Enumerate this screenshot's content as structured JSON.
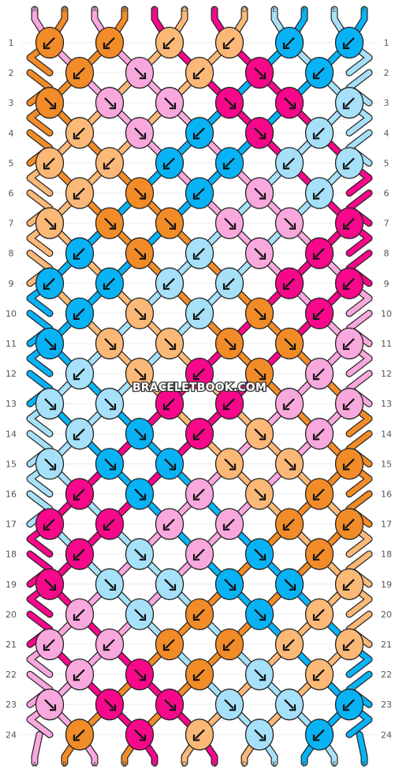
{
  "watermark": "BRACELETBOOK.COM",
  "row_numbers": [
    "1",
    "2",
    "3",
    "4",
    "5",
    "6",
    "7",
    "8",
    "9",
    "10",
    "11",
    "12",
    "13",
    "14",
    "15",
    "16",
    "17",
    "18",
    "19",
    "20",
    "21",
    "22",
    "23",
    "24"
  ],
  "colors": {
    "A": "#f9a8de",
    "B": "#f28c28",
    "C": "#f7078a",
    "D": "#fbb877",
    "E": "#a6e1f9",
    "F": "#08b3f5"
  },
  "top_strings": [
    "A",
    "B",
    "A",
    "B",
    "C",
    "D",
    "C",
    "D",
    "E",
    "F",
    "E",
    "F"
  ],
  "bottom_strings": [
    "A",
    "B",
    "A",
    "B",
    "C",
    "D",
    "C",
    "D",
    "E",
    "F",
    "E",
    "F"
  ],
  "knots": [
    {
      "row": 1,
      "pos": 0,
      "color": "B",
      "arrow": "sw"
    },
    {
      "row": 1,
      "pos": 2,
      "color": "B",
      "arrow": "sw"
    },
    {
      "row": 1,
      "pos": 4,
      "color": "D",
      "arrow": "sw"
    },
    {
      "row": 1,
      "pos": 6,
      "color": "D",
      "arrow": "sw"
    },
    {
      "row": 1,
      "pos": 8,
      "color": "F",
      "arrow": "sw"
    },
    {
      "row": 1,
      "pos": 10,
      "color": "F",
      "arrow": "sw"
    },
    {
      "row": 2,
      "pos": 1,
      "color": "B",
      "arrow": "sw"
    },
    {
      "row": 2,
      "pos": 3,
      "color": "A",
      "arrow": "se"
    },
    {
      "row": 2,
      "pos": 5,
      "color": "D",
      "arrow": "sw"
    },
    {
      "row": 2,
      "pos": 7,
      "color": "C",
      "arrow": "se"
    },
    {
      "row": 2,
      "pos": 9,
      "color": "F",
      "arrow": "sw"
    },
    {
      "row": 3,
      "pos": 0,
      "color": "B",
      "arrow": "se"
    },
    {
      "row": 3,
      "pos": 2,
      "color": "A",
      "arrow": "se"
    },
    {
      "row": 3,
      "pos": 4,
      "color": "A",
      "arrow": "se"
    },
    {
      "row": 3,
      "pos": 6,
      "color": "C",
      "arrow": "se"
    },
    {
      "row": 3,
      "pos": 8,
      "color": "C",
      "arrow": "se"
    },
    {
      "row": 3,
      "pos": 10,
      "color": "E",
      "arrow": "sw"
    },
    {
      "row": 4,
      "pos": 1,
      "color": "D",
      "arrow": "sw"
    },
    {
      "row": 4,
      "pos": 3,
      "color": "A",
      "arrow": "se"
    },
    {
      "row": 4,
      "pos": 5,
      "color": "F",
      "arrow": "sw"
    },
    {
      "row": 4,
      "pos": 7,
      "color": "C",
      "arrow": "se"
    },
    {
      "row": 4,
      "pos": 9,
      "color": "E",
      "arrow": "sw"
    },
    {
      "row": 5,
      "pos": 0,
      "color": "D",
      "arrow": "sw"
    },
    {
      "row": 5,
      "pos": 2,
      "color": "D",
      "arrow": "sw"
    },
    {
      "row": 5,
      "pos": 4,
      "color": "F",
      "arrow": "sw"
    },
    {
      "row": 5,
      "pos": 6,
      "color": "F",
      "arrow": "sw"
    },
    {
      "row": 5,
      "pos": 8,
      "color": "E",
      "arrow": "sw"
    },
    {
      "row": 5,
      "pos": 10,
      "color": "E",
      "arrow": "sw"
    },
    {
      "row": 6,
      "pos": 1,
      "color": "D",
      "arrow": "sw"
    },
    {
      "row": 6,
      "pos": 3,
      "color": "B",
      "arrow": "se"
    },
    {
      "row": 6,
      "pos": 5,
      "color": "F",
      "arrow": "sw"
    },
    {
      "row": 6,
      "pos": 7,
      "color": "A",
      "arrow": "se"
    },
    {
      "row": 6,
      "pos": 9,
      "color": "E",
      "arrow": "sw"
    },
    {
      "row": 7,
      "pos": 0,
      "color": "D",
      "arrow": "se"
    },
    {
      "row": 7,
      "pos": 2,
      "color": "B",
      "arrow": "se"
    },
    {
      "row": 7,
      "pos": 4,
      "color": "B",
      "arrow": "se"
    },
    {
      "row": 7,
      "pos": 6,
      "color": "A",
      "arrow": "se"
    },
    {
      "row": 7,
      "pos": 8,
      "color": "A",
      "arrow": "se"
    },
    {
      "row": 7,
      "pos": 10,
      "color": "C",
      "arrow": "sw"
    },
    {
      "row": 8,
      "pos": 1,
      "color": "F",
      "arrow": "sw"
    },
    {
      "row": 8,
      "pos": 3,
      "color": "B",
      "arrow": "se"
    },
    {
      "row": 8,
      "pos": 5,
      "color": "E",
      "arrow": "sw"
    },
    {
      "row": 8,
      "pos": 7,
      "color": "A",
      "arrow": "se"
    },
    {
      "row": 8,
      "pos": 9,
      "color": "C",
      "arrow": "sw"
    },
    {
      "row": 9,
      "pos": 0,
      "color": "F",
      "arrow": "sw"
    },
    {
      "row": 9,
      "pos": 2,
      "color": "F",
      "arrow": "sw"
    },
    {
      "row": 9,
      "pos": 4,
      "color": "E",
      "arrow": "sw"
    },
    {
      "row": 9,
      "pos": 6,
      "color": "E",
      "arrow": "sw"
    },
    {
      "row": 9,
      "pos": 8,
      "color": "C",
      "arrow": "sw"
    },
    {
      "row": 9,
      "pos": 10,
      "color": "C",
      "arrow": "sw"
    },
    {
      "row": 10,
      "pos": 1,
      "color": "F",
      "arrow": "sw"
    },
    {
      "row": 10,
      "pos": 3,
      "color": "D",
      "arrow": "se"
    },
    {
      "row": 10,
      "pos": 5,
      "color": "E",
      "arrow": "sw"
    },
    {
      "row": 10,
      "pos": 7,
      "color": "B",
      "arrow": "se"
    },
    {
      "row": 10,
      "pos": 9,
      "color": "C",
      "arrow": "sw"
    },
    {
      "row": 11,
      "pos": 0,
      "color": "F",
      "arrow": "se"
    },
    {
      "row": 11,
      "pos": 2,
      "color": "D",
      "arrow": "se"
    },
    {
      "row": 11,
      "pos": 4,
      "color": "D",
      "arrow": "se"
    },
    {
      "row": 11,
      "pos": 6,
      "color": "B",
      "arrow": "se"
    },
    {
      "row": 11,
      "pos": 8,
      "color": "B",
      "arrow": "se"
    },
    {
      "row": 11,
      "pos": 10,
      "color": "A",
      "arrow": "sw"
    },
    {
      "row": 12,
      "pos": 1,
      "color": "E",
      "arrow": "sw"
    },
    {
      "row": 12,
      "pos": 3,
      "color": "D",
      "arrow": "se"
    },
    {
      "row": 12,
      "pos": 5,
      "color": "C",
      "arrow": "sw"
    },
    {
      "row": 12,
      "pos": 7,
      "color": "B",
      "arrow": "se"
    },
    {
      "row": 12,
      "pos": 9,
      "color": "A",
      "arrow": "sw"
    },
    {
      "row": 13,
      "pos": 0,
      "color": "E",
      "arrow": "se"
    },
    {
      "row": 13,
      "pos": 2,
      "color": "E",
      "arrow": "se"
    },
    {
      "row": 13,
      "pos": 4,
      "color": "C",
      "arrow": "sw"
    },
    {
      "row": 13,
      "pos": 6,
      "color": "C",
      "arrow": "sw"
    },
    {
      "row": 13,
      "pos": 8,
      "color": "A",
      "arrow": "sw"
    },
    {
      "row": 13,
      "pos": 10,
      "color": "A",
      "arrow": "sw"
    },
    {
      "row": 14,
      "pos": 1,
      "color": "E",
      "arrow": "sw"
    },
    {
      "row": 14,
      "pos": 3,
      "color": "F",
      "arrow": "se"
    },
    {
      "row": 14,
      "pos": 5,
      "color": "C",
      "arrow": "sw"
    },
    {
      "row": 14,
      "pos": 7,
      "color": "D",
      "arrow": "se"
    },
    {
      "row": 14,
      "pos": 9,
      "color": "A",
      "arrow": "sw"
    },
    {
      "row": 15,
      "pos": 0,
      "color": "E",
      "arrow": "se"
    },
    {
      "row": 15,
      "pos": 2,
      "color": "F",
      "arrow": "se"
    },
    {
      "row": 15,
      "pos": 4,
      "color": "F",
      "arrow": "se"
    },
    {
      "row": 15,
      "pos": 6,
      "color": "D",
      "arrow": "se"
    },
    {
      "row": 15,
      "pos": 8,
      "color": "D",
      "arrow": "se"
    },
    {
      "row": 15,
      "pos": 10,
      "color": "B",
      "arrow": "sw"
    },
    {
      "row": 16,
      "pos": 1,
      "color": "C",
      "arrow": "sw"
    },
    {
      "row": 16,
      "pos": 3,
      "color": "F",
      "arrow": "se"
    },
    {
      "row": 16,
      "pos": 5,
      "color": "A",
      "arrow": "sw"
    },
    {
      "row": 16,
      "pos": 7,
      "color": "D",
      "arrow": "se"
    },
    {
      "row": 16,
      "pos": 9,
      "color": "B",
      "arrow": "sw"
    },
    {
      "row": 17,
      "pos": 0,
      "color": "C",
      "arrow": "sw"
    },
    {
      "row": 17,
      "pos": 2,
      "color": "C",
      "arrow": "sw"
    },
    {
      "row": 17,
      "pos": 4,
      "color": "A",
      "arrow": "sw"
    },
    {
      "row": 17,
      "pos": 6,
      "color": "A",
      "arrow": "sw"
    },
    {
      "row": 17,
      "pos": 8,
      "color": "B",
      "arrow": "sw"
    },
    {
      "row": 17,
      "pos": 10,
      "color": "B",
      "arrow": "sw"
    },
    {
      "row": 18,
      "pos": 1,
      "color": "C",
      "arrow": "sw"
    },
    {
      "row": 18,
      "pos": 3,
      "color": "E",
      "arrow": "se"
    },
    {
      "row": 18,
      "pos": 5,
      "color": "A",
      "arrow": "sw"
    },
    {
      "row": 18,
      "pos": 7,
      "color": "F",
      "arrow": "se"
    },
    {
      "row": 18,
      "pos": 9,
      "color": "B",
      "arrow": "sw"
    },
    {
      "row": 19,
      "pos": 0,
      "color": "C",
      "arrow": "se"
    },
    {
      "row": 19,
      "pos": 2,
      "color": "E",
      "arrow": "se"
    },
    {
      "row": 19,
      "pos": 4,
      "color": "E",
      "arrow": "se"
    },
    {
      "row": 19,
      "pos": 6,
      "color": "F",
      "arrow": "se"
    },
    {
      "row": 19,
      "pos": 8,
      "color": "F",
      "arrow": "se"
    },
    {
      "row": 19,
      "pos": 10,
      "color": "D",
      "arrow": "sw"
    },
    {
      "row": 20,
      "pos": 1,
      "color": "A",
      "arrow": "sw"
    },
    {
      "row": 20,
      "pos": 3,
      "color": "E",
      "arrow": "se"
    },
    {
      "row": 20,
      "pos": 5,
      "color": "B",
      "arrow": "sw"
    },
    {
      "row": 20,
      "pos": 7,
      "color": "F",
      "arrow": "se"
    },
    {
      "row": 20,
      "pos": 9,
      "color": "D",
      "arrow": "sw"
    },
    {
      "row": 21,
      "pos": 0,
      "color": "A",
      "arrow": "sw"
    },
    {
      "row": 21,
      "pos": 2,
      "color": "A",
      "arrow": "sw"
    },
    {
      "row": 21,
      "pos": 4,
      "color": "B",
      "arrow": "sw"
    },
    {
      "row": 21,
      "pos": 6,
      "color": "B",
      "arrow": "sw"
    },
    {
      "row": 21,
      "pos": 8,
      "color": "D",
      "arrow": "sw"
    },
    {
      "row": 21,
      "pos": 10,
      "color": "D",
      "arrow": "sw"
    },
    {
      "row": 22,
      "pos": 1,
      "color": "A",
      "arrow": "sw"
    },
    {
      "row": 22,
      "pos": 3,
      "color": "C",
      "arrow": "se"
    },
    {
      "row": 22,
      "pos": 5,
      "color": "B",
      "arrow": "sw"
    },
    {
      "row": 22,
      "pos": 7,
      "color": "E",
      "arrow": "se"
    },
    {
      "row": 22,
      "pos": 9,
      "color": "D",
      "arrow": "sw"
    },
    {
      "row": 23,
      "pos": 0,
      "color": "A",
      "arrow": "se"
    },
    {
      "row": 23,
      "pos": 2,
      "color": "C",
      "arrow": "se"
    },
    {
      "row": 23,
      "pos": 4,
      "color": "C",
      "arrow": "se"
    },
    {
      "row": 23,
      "pos": 6,
      "color": "E",
      "arrow": "se"
    },
    {
      "row": 23,
      "pos": 8,
      "color": "E",
      "arrow": "se"
    },
    {
      "row": 23,
      "pos": 10,
      "color": "F",
      "arrow": "sw"
    },
    {
      "row": 24,
      "pos": 1,
      "color": "B",
      "arrow": "sw"
    },
    {
      "row": 24,
      "pos": 3,
      "color": "C",
      "arrow": "se"
    },
    {
      "row": 24,
      "pos": 5,
      "color": "D",
      "arrow": "sw"
    },
    {
      "row": 24,
      "pos": 7,
      "color": "E",
      "arrow": "se"
    },
    {
      "row": 24,
      "pos": 9,
      "color": "F",
      "arrow": "sw"
    }
  ]
}
